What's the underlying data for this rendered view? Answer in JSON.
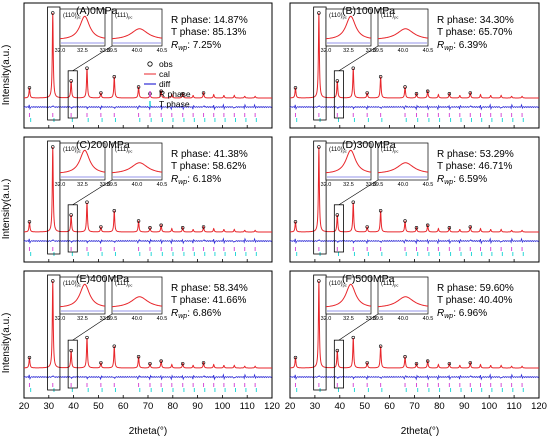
{
  "figure": {
    "ylabel": "Intensity(a.u.)",
    "xlabel": "2theta(°)",
    "xticks": [
      20,
      30,
      40,
      50,
      60,
      70,
      80,
      90,
      100,
      110,
      120
    ],
    "legend": [
      "obs",
      "cal",
      "diff",
      "R phase",
      "T phase"
    ]
  },
  "colors": {
    "obs": "#000000",
    "cal": "#e8262b",
    "diff": "#2e2bd6",
    "r_phase": "#d64fd6",
    "t_phase": "#2ad7d7",
    "frame": "#000000"
  },
  "chart_data": [
    {
      "type": "line",
      "title": "(A)0MPa",
      "r_phase": "R phase: 14.87%",
      "t_phase": "T phase: 85.13%",
      "rwp_label": "R",
      "rwp_sub": "wp",
      "rwp_value": ":  7.25%",
      "inset_110": {
        "label": "(110)",
        "sub": "pc",
        "x": [
          32.0,
          32.5,
          33.0
        ],
        "xlim": [
          32.0,
          33.0
        ]
      },
      "inset_111": {
        "label": "(111)",
        "sub": "pc",
        "x": [
          39.5,
          40.0,
          40.5
        ],
        "xlim": [
          39.5,
          40.5
        ]
      },
      "xlim": [
        20,
        120
      ],
      "x_tick_labels": false
    },
    {
      "type": "line",
      "title": "(B)100MPa",
      "r_phase": "R phase: 34.30%",
      "t_phase": "T phase: 65.70%",
      "rwp_label": "R",
      "rwp_sub": "wp",
      "rwp_value": ":  6.39%",
      "inset_110": {
        "label": "(110)",
        "sub": "pc",
        "x": [
          32.0,
          32.5,
          33.0
        ],
        "xlim": [
          32.0,
          33.0
        ]
      },
      "inset_111": {
        "label": "(111)",
        "sub": "pc",
        "x": [
          39.5,
          40.0,
          40.5
        ],
        "xlim": [
          39.5,
          40.5
        ]
      },
      "xlim": [
        20,
        120
      ],
      "x_tick_labels": false
    },
    {
      "type": "line",
      "title": "(C)200MPa",
      "r_phase": "R phase: 41.38%",
      "t_phase": "T phase: 58.62%",
      "rwp_label": "R",
      "rwp_sub": "wp",
      "rwp_value": ":  6.18%",
      "inset_110": {
        "label": "(110)",
        "sub": "pc",
        "x": [
          32.0,
          32.5,
          33.0
        ],
        "xlim": [
          32.0,
          33.0
        ]
      },
      "inset_111": {
        "label": "(111)",
        "sub": "pc",
        "x": [
          39.5,
          40.0,
          40.5
        ],
        "xlim": [
          39.5,
          40.5
        ]
      },
      "xlim": [
        20,
        120
      ],
      "x_tick_labels": false
    },
    {
      "type": "line",
      "title": "(D)300MPa",
      "r_phase": "R phase: 53.29%",
      "t_phase": "T phase: 46.71%",
      "rwp_label": "R",
      "rwp_sub": "wp",
      "rwp_value": ":  6.59%",
      "inset_110": {
        "label": "(110)",
        "sub": "pc",
        "x": [
          32.0,
          32.5,
          33.0
        ],
        "xlim": [
          32.0,
          33.0
        ]
      },
      "inset_111": {
        "label": "(111)",
        "sub": "pc",
        "x": [
          39.5,
          40.0,
          40.5
        ],
        "xlim": [
          39.5,
          40.5
        ]
      },
      "xlim": [
        20,
        120
      ],
      "x_tick_labels": false
    },
    {
      "type": "line",
      "title": "(E)400MPa",
      "r_phase": "R phase: 58.34%",
      "t_phase": "T phase: 41.66%",
      "rwp_label": "R",
      "rwp_sub": "wp",
      "rwp_value": ":  6.86%",
      "inset_110": {
        "label": "(110)",
        "sub": "pc",
        "x": [
          32.0,
          32.5,
          33.0
        ],
        "xlim": [
          32.0,
          33.0
        ]
      },
      "inset_111": {
        "label": "(111)",
        "sub": "pc",
        "x": [
          39.5,
          40.0,
          40.5
        ],
        "xlim": [
          39.5,
          40.5
        ]
      },
      "xlim": [
        20,
        120
      ],
      "x_tick_labels": true
    },
    {
      "type": "line",
      "title": "(F)500MPa",
      "r_phase": "R phase: 59.60%",
      "t_phase": "T phase: 40.40%",
      "rwp_label": "R",
      "rwp_sub": "wp",
      "rwp_value": ":  6.96%",
      "inset_110": {
        "label": "(110)",
        "sub": "pc",
        "x": [
          32.0,
          32.5,
          33.0
        ],
        "xlim": [
          32.0,
          33.0
        ]
      },
      "inset_111": {
        "label": "(111)",
        "sub": "pc",
        "x": [
          39.5,
          40.0,
          40.5
        ],
        "xlim": [
          39.5,
          40.5
        ]
      },
      "xlim": [
        20,
        120
      ],
      "x_tick_labels": true
    }
  ],
  "peaks": {
    "positions": [
      22.2,
      31.6,
      39.0,
      45.4,
      51.0,
      56.4,
      66.2,
      70.8,
      75.3,
      79.6,
      84.0,
      88.2,
      92.4,
      96.5,
      100.6,
      104.8,
      109.0,
      113.2
    ],
    "relative_intensity": [
      0.12,
      1.0,
      0.2,
      0.35,
      0.06,
      0.25,
      0.13,
      0.05,
      0.08,
      0.04,
      0.05,
      0.03,
      0.06,
      0.04,
      0.03,
      0.03,
      0.02,
      0.02
    ]
  }
}
